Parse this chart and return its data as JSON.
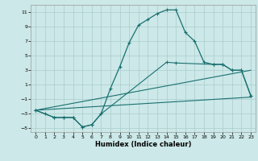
{
  "xlabel": "Humidex (Indice chaleur)",
  "bg_color": "#cce8e8",
  "grid_color": "#aacccc",
  "line_color": "#1a7070",
  "xlim": [
    -0.5,
    23.5
  ],
  "ylim": [
    -5.5,
    12
  ],
  "xticks": [
    0,
    1,
    2,
    3,
    4,
    5,
    6,
    7,
    8,
    9,
    10,
    11,
    12,
    13,
    14,
    15,
    16,
    17,
    18,
    19,
    20,
    21,
    22,
    23
  ],
  "yticks": [
    -5,
    -3,
    -1,
    1,
    3,
    5,
    7,
    9,
    11
  ],
  "curve1_x": [
    0,
    1,
    2,
    3,
    4,
    5,
    6,
    7,
    8,
    9,
    10,
    11,
    12,
    13,
    14,
    15,
    16,
    17,
    18,
    19,
    20,
    21,
    22,
    23
  ],
  "curve1_y": [
    -2.5,
    -3.0,
    -3.5,
    -3.5,
    -3.5,
    -4.8,
    -4.5,
    -3.0,
    0.5,
    3.5,
    6.8,
    9.2,
    10.0,
    10.8,
    11.3,
    11.3,
    8.2,
    7.0,
    4.1,
    3.8,
    3.8,
    3.0,
    3.0,
    -0.5
  ],
  "curve2_x": [
    0,
    2,
    3,
    4,
    5,
    6,
    7,
    14,
    15,
    19,
    20,
    21,
    22,
    23
  ],
  "curve2_y": [
    -2.5,
    -3.5,
    -3.5,
    -3.5,
    -4.8,
    -4.5,
    -3.0,
    4.1,
    4.0,
    3.8,
    3.8,
    3.0,
    3.0,
    -0.5
  ],
  "line1_x": [
    0,
    23
  ],
  "line1_y": [
    -2.5,
    -0.7
  ],
  "line2_x": [
    0,
    23
  ],
  "line2_y": [
    -2.5,
    3.0
  ]
}
